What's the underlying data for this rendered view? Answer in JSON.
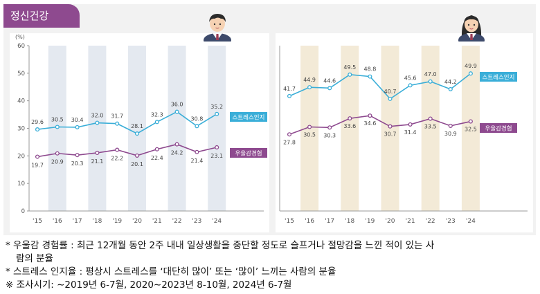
{
  "header": {
    "title": "정신건강"
  },
  "icons": {
    "male": "male-student-avatar",
    "female": "female-student-avatar"
  },
  "colors": {
    "stress": "#3aaed8",
    "depression": "#8e4a8f",
    "male_band": "#e4e9f0",
    "female_band": "#f3ead7",
    "tab": "#8e4a8f"
  },
  "chart_data": [
    {
      "type": "line",
      "panel": "male",
      "unit_label": "(%)",
      "x": [
        "'15",
        "'16",
        "'17",
        "'18",
        "'19",
        "'20",
        "'21",
        "'22",
        "'23",
        "'24"
      ],
      "ylim": [
        0,
        60
      ],
      "yticks": [
        0,
        10,
        20,
        30,
        40,
        50,
        60
      ],
      "shaded_years": [
        "'16",
        "'18",
        "'20",
        "'22",
        "'24"
      ],
      "series": [
        {
          "name": "스트레스인지",
          "key": "stress",
          "values": [
            29.6,
            30.5,
            30.4,
            32.0,
            31.7,
            28.1,
            32.3,
            36.0,
            30.8,
            35.2
          ],
          "value_labels": [
            "29.6",
            "30.5",
            "30.4",
            "32.0",
            "31.7",
            "28.1",
            "32.3",
            "36.0",
            "30.8",
            "35.2"
          ]
        },
        {
          "name": "우울감경험",
          "key": "depression",
          "values": [
            19.7,
            20.9,
            20.3,
            21.1,
            22.2,
            20.1,
            22.4,
            24.2,
            21.4,
            23.1
          ],
          "value_labels": [
            "19.7",
            "20.9",
            "20.3",
            "21.1",
            "22.2",
            "20.1",
            "22.4",
            "24.2",
            "21.4",
            "23.1"
          ]
        }
      ]
    },
    {
      "type": "line",
      "panel": "female",
      "x": [
        "'15",
        "'16",
        "'17",
        "'18",
        "'19",
        "'20",
        "'21",
        "'22",
        "'23",
        "'24"
      ],
      "ylim": [
        0,
        60
      ],
      "shaded_years": [
        "'16",
        "'18",
        "'20",
        "'22",
        "'24"
      ],
      "series": [
        {
          "name": "스트레스인지",
          "key": "stress",
          "values": [
            41.7,
            44.9,
            44.6,
            49.5,
            48.8,
            40.7,
            45.6,
            47.0,
            44.2,
            49.9
          ],
          "value_labels": [
            "41.7",
            "44.9",
            "44.6",
            "49.5",
            "48.8",
            "40.7",
            "45.6",
            "47.0",
            "44.2",
            "49.9"
          ]
        },
        {
          "name": "우울감경험",
          "key": "depression",
          "values": [
            27.8,
            30.5,
            30.3,
            33.6,
            34.6,
            30.7,
            31.4,
            33.5,
            30.9,
            32.5
          ],
          "value_labels": [
            "27.8",
            "30.5",
            "30.3",
            "33.6",
            "34.6",
            "30.7",
            "31.4",
            "33.5",
            "30.9",
            "32.5"
          ]
        }
      ]
    }
  ],
  "notes": {
    "line1": "* 우울감 경험률 : 최근 12개월 동안 2주 내내 일상생활을 중단할 정도로 슬프거나 절망감을 느낀 적이 있는 사",
    "line1b": "람의 분율",
    "line2": "* 스트레스 인지율 : 평상시 스트레스를 ‘대단히 많이’ 또는 ‘많이’ 느끼는 사람의 분율",
    "line3": "※ 조사시기: ∼2019년 6-7월, 2020∼2023년 8-10월, 2024년 6-7월"
  }
}
